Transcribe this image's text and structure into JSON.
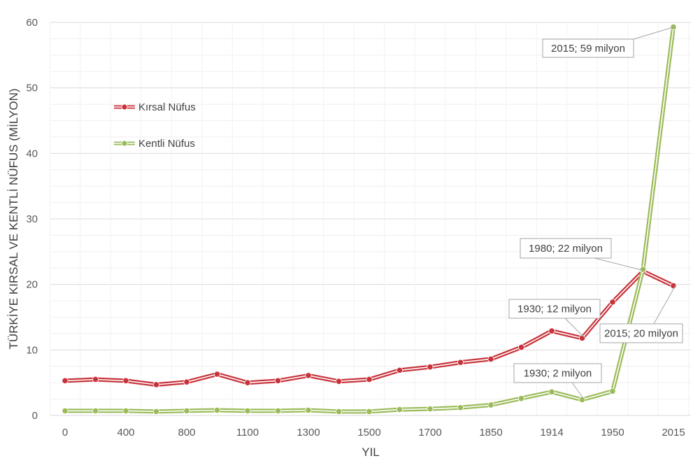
{
  "chart_data": {
    "type": "line",
    "xlabel": "YIL",
    "ylabel": "TÜRKİYE KIRSAL VE KENTLİ NÜFUS (MİLYON)",
    "ylim": [
      0,
      60
    ],
    "yticks": [
      0,
      10,
      20,
      30,
      40,
      50,
      60
    ],
    "grid": true,
    "legend_position": "upper-left",
    "categories": [
      "0",
      "200",
      "400",
      "600",
      "800",
      "1000",
      "1100",
      "1200",
      "1300",
      "1400",
      "1500",
      "1600",
      "1700",
      "1800",
      "1850",
      "1900",
      "1914",
      "1930",
      "1950",
      "1980",
      "2015"
    ],
    "x_tick_labels": [
      "0",
      "400",
      "800",
      "1100",
      "1300",
      "1500",
      "1700",
      "1850",
      "1914",
      "1950",
      "2015"
    ],
    "series": [
      {
        "name": "Kırsal Nüfus",
        "color": "#c8323a",
        "values": [
          5.3,
          5.5,
          5.3,
          4.7,
          5.1,
          6.3,
          5.0,
          5.3,
          6.1,
          5.2,
          5.5,
          6.9,
          7.4,
          8.1,
          8.6,
          10.4,
          12.9,
          11.8,
          17.3,
          22.0,
          19.8
        ]
      },
      {
        "name": "Kentli Nüfus",
        "color": "#9bbb59",
        "values": [
          0.7,
          0.7,
          0.7,
          0.6,
          0.7,
          0.8,
          0.7,
          0.7,
          0.8,
          0.6,
          0.6,
          0.9,
          1.0,
          1.2,
          1.6,
          2.6,
          3.6,
          2.4,
          3.7,
          22.3,
          59.3
        ]
      }
    ],
    "annotations": [
      {
        "text": "2015; 59 milyon"
      },
      {
        "text": "1980; 22 milyon"
      },
      {
        "text": "1930; 12 milyon"
      },
      {
        "text": "2015; 20 milyon"
      },
      {
        "text": "1930; 2 milyon"
      }
    ]
  }
}
